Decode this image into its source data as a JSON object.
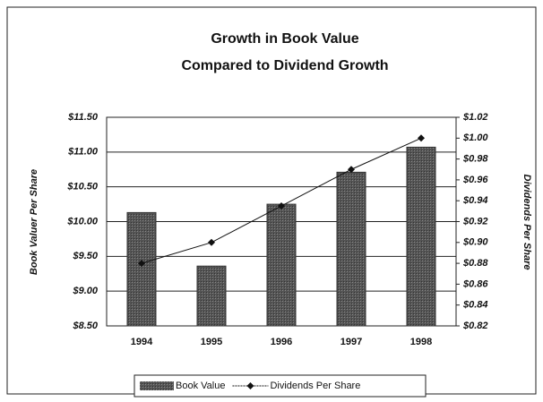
{
  "chart_data": {
    "type": "bar_line",
    "title": [
      "Growth in Book Value",
      "Compared to Dividend Growth"
    ],
    "categories": [
      "1994",
      "1995",
      "1996",
      "1997",
      "1998"
    ],
    "series": [
      {
        "name": "Book Value",
        "color": "#4a4a4a",
        "values": [
          10.13,
          9.36,
          10.25,
          10.71,
          11.07
        ],
        "type": "bar"
      },
      {
        "name": "Dividends Per Share",
        "color": "#111111",
        "values": [
          0.88,
          0.9,
          0.935,
          0.97,
          1.0
        ],
        "type": "line",
        "axis": "y2"
      }
    ],
    "ylabel": "Book Valuer Per Share",
    "y2label": "Dividends Per Share",
    "ylim": [
      8.5,
      11.5
    ],
    "yticks": [
      {
        "value": 8.5,
        "label": "$8.50"
      },
      {
        "value": 9.0,
        "label": "$9.00"
      },
      {
        "value": 9.5,
        "label": "$9.50"
      },
      {
        "value": 10.0,
        "label": "$10.00"
      },
      {
        "value": 10.5,
        "label": "$10.50"
      },
      {
        "value": 11.0,
        "label": "$11.00"
      },
      {
        "value": 11.5,
        "label": "$11.50"
      }
    ],
    "y2lim": [
      0.82,
      1.02
    ],
    "y2ticks": [
      {
        "value": 0.82,
        "label": "$0.82"
      },
      {
        "value": 0.84,
        "label": "$0.84"
      },
      {
        "value": 0.86,
        "label": "$0.86"
      },
      {
        "value": 0.88,
        "label": "$0.88"
      },
      {
        "value": 0.9,
        "label": "$0.90"
      },
      {
        "value": 0.92,
        "label": "$0.92"
      },
      {
        "value": 0.94,
        "label": "$0.94"
      },
      {
        "value": 0.96,
        "label": "$0.96"
      },
      {
        "value": 0.98,
        "label": "$0.98"
      },
      {
        "value": 1.0,
        "label": "$1.00"
      },
      {
        "value": 1.02,
        "label": "$1.02"
      }
    ],
    "grid": true,
    "legend": "bottom"
  }
}
